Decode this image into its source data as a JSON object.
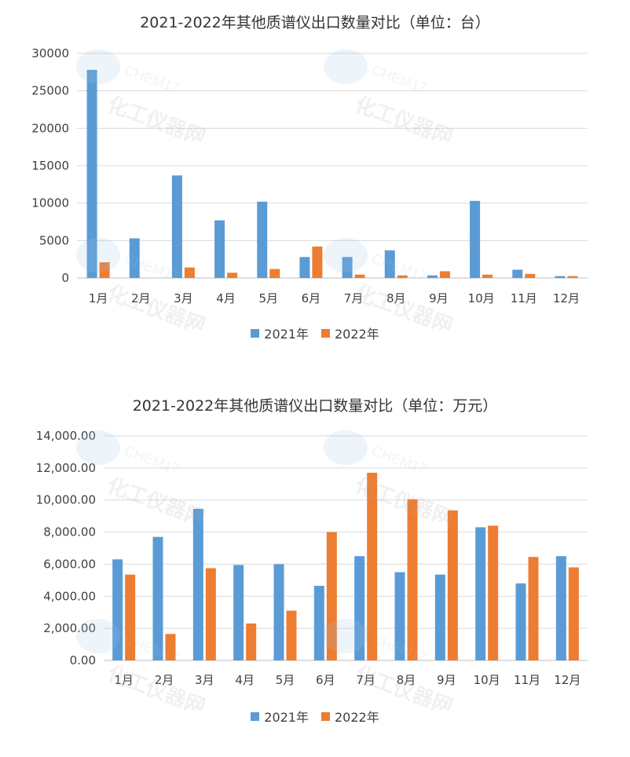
{
  "colors": {
    "series_2021": "#5b9bd5",
    "series_2022": "#ed7d31",
    "grid": "#d9d9d9"
  },
  "watermark": {
    "brand": "CHEM17",
    "name": "化工仪器网"
  },
  "chart_data": [
    {
      "type": "bar",
      "title": "2021-2022年其他质谱仪出口数量对比（单位：台）",
      "categories": [
        "1月",
        "2月",
        "3月",
        "4月",
        "5月",
        "6月",
        "7月",
        "8月",
        "9月",
        "10月",
        "11月",
        "12月"
      ],
      "series": [
        {
          "name": "2021年",
          "values": [
            27800,
            5300,
            13700,
            7700,
            10200,
            2800,
            2800,
            3700,
            350,
            10300,
            1100,
            250
          ]
        },
        {
          "name": "2022年",
          "values": [
            2100,
            0,
            1400,
            700,
            1200,
            4200,
            450,
            350,
            900,
            450,
            550,
            250
          ]
        }
      ],
      "ylim": [
        0,
        30000
      ],
      "yticks": [
        "0",
        "5000",
        "10000",
        "15000",
        "20000",
        "25000",
        "30000"
      ],
      "grid": true,
      "legend": "bottom"
    },
    {
      "type": "bar",
      "title": "2021-2022年其他质谱仪出口数量对比（单位：万元）",
      "categories": [
        "1月",
        "2月",
        "3月",
        "4月",
        "5月",
        "6月",
        "7月",
        "8月",
        "9月",
        "10月",
        "11月",
        "12月"
      ],
      "series": [
        {
          "name": "2021年",
          "values": [
            6300,
            7700,
            9450,
            5950,
            6000,
            4650,
            6500,
            5500,
            5350,
            8300,
            4800,
            6500
          ]
        },
        {
          "name": "2022年",
          "values": [
            5350,
            1650,
            5750,
            2300,
            3100,
            8000,
            11700,
            10050,
            9350,
            8400,
            6450,
            5800
          ]
        }
      ],
      "ylim": [
        0,
        14000
      ],
      "yticks": [
        "0.00",
        "2,000.00",
        "4,000.00",
        "6,000.00",
        "8,000.00",
        "10,000.00",
        "12,000.00",
        "14,000.00"
      ],
      "grid": true,
      "legend": "bottom"
    }
  ]
}
